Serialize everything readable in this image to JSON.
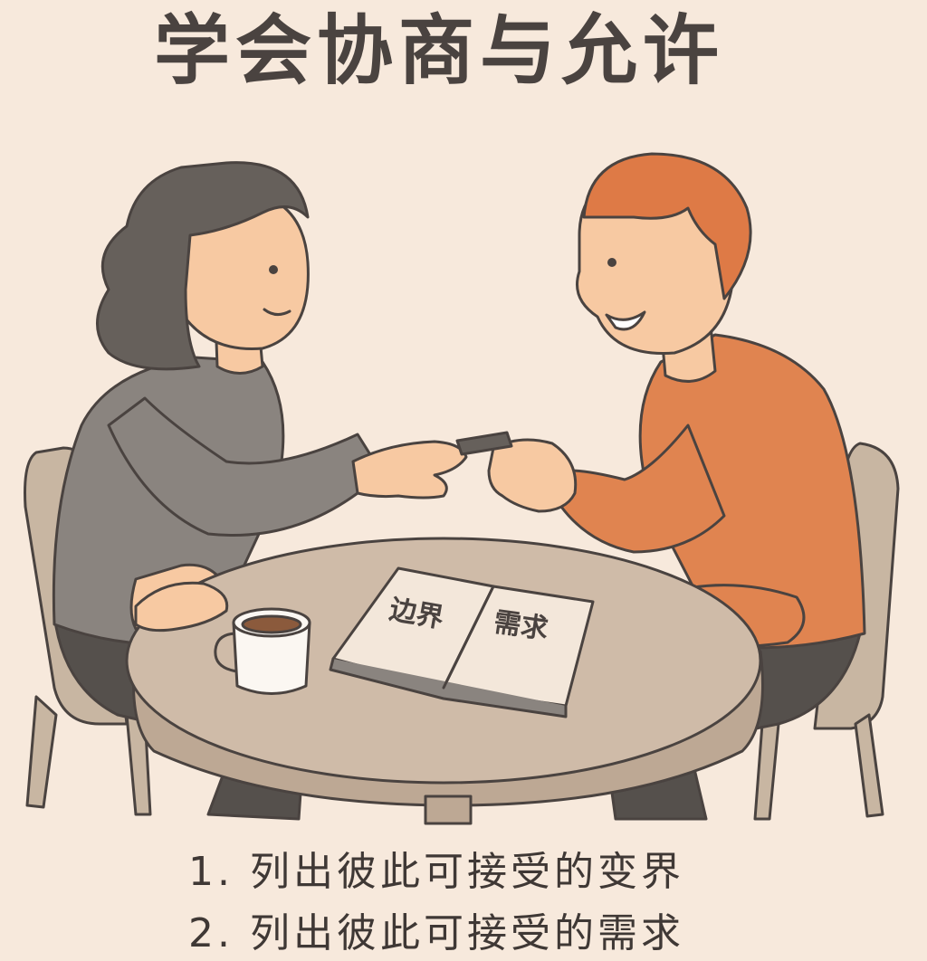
{
  "title": "学会协商与允许",
  "book": {
    "left_page": "边界",
    "right_page": "需求"
  },
  "list": [
    {
      "number": "1.",
      "text": "列出彼此可接受的变界"
    },
    {
      "number": "2.",
      "text": "列出彼此可接受的需求"
    }
  ],
  "colors": {
    "background": "#f7e9dc",
    "woman_sweater": "#8a847f",
    "woman_hair": "#66605b",
    "man_sweater": "#e08450",
    "man_hair": "#de7a46",
    "skin": "#f7c9a2",
    "table": "#cfbba8",
    "chair": "#c8b6a2",
    "outline": "#4a4340"
  }
}
